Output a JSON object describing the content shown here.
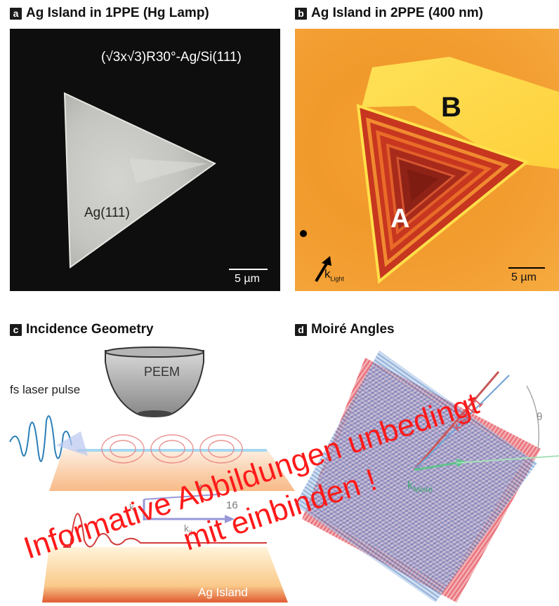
{
  "panels": {
    "a": {
      "letter": "a",
      "title": "Ag Island in 1PPE (Hg Lamp)",
      "surface_label": "(√3x√3)R30°-Ag/Si(111)",
      "island_label": "Ag(111)",
      "scale_label": "5 µm"
    },
    "b": {
      "letter": "b",
      "title": "Ag Island in 2PPE (400 nm)",
      "label_a": "A",
      "label_b": "B",
      "k_label": "k",
      "k_sub": "Light",
      "scale_label": "5 µm"
    },
    "c": {
      "letter": "c",
      "title": "Incidence Geometry",
      "peem_label": "PEEM",
      "laser_label": "fs laser pulse",
      "k_label": "k",
      "theta_label": "16",
      "kz_label": "k",
      "kz_sub": "z",
      "kpar_label": "k",
      "kpar_sub": "||",
      "island_label": "Ag Island"
    },
    "d": {
      "letter": "d",
      "title": "Moiré Angles",
      "ksp_label": "kSPP1",
      "kmoire_label": "k",
      "kmoire_sub": "Moiré",
      "theta_label": "θ"
    }
  },
  "watermark": {
    "line1": "Informative Abbildungen unbedingt",
    "line2": "mit einbinden !"
  }
}
